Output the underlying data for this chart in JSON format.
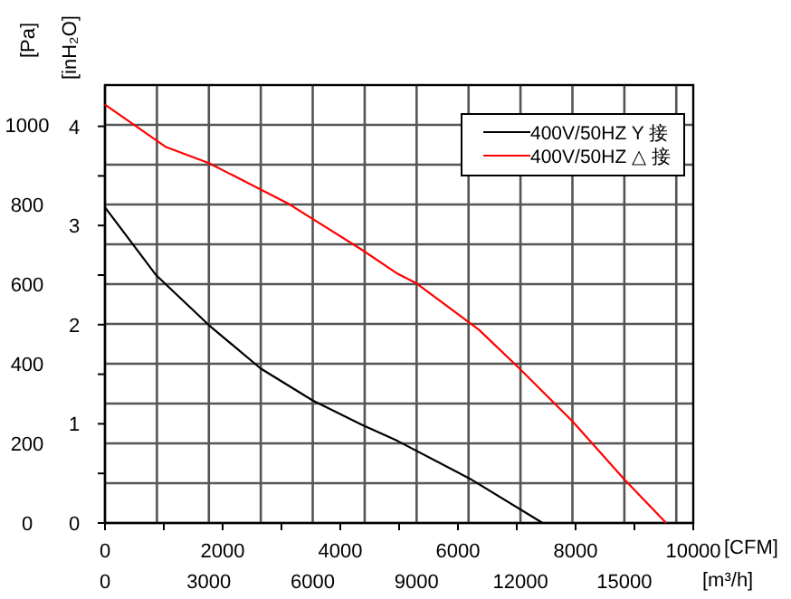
{
  "chart_data": {
    "type": "line",
    "xlabel": "[CFM]",
    "x2label": "[m³/h]",
    "ylabel": "[Pa]",
    "y2label": "[inH₂O]",
    "xlim": [
      0,
      10000
    ],
    "xticks": [
      0,
      {
        "value": 1000,
        "label": null
      },
      2000,
      {
        "value": 3000,
        "label": null
      },
      4000,
      {
        "value": 5000,
        "label": null
      },
      6000,
      {
        "value": 7000,
        "label": null
      },
      8000,
      {
        "value": 9000,
        "label": null
      },
      10000
    ],
    "x2lim": [
      0,
      16990
    ],
    "x2ticks": [
      0,
      {
        "value": 1500,
        "label": null
      },
      3000,
      {
        "value": 4500,
        "label": null
      },
      6000,
      {
        "value": 7500,
        "label": null
      },
      9000,
      {
        "value": 10500,
        "label": null
      },
      12000,
      {
        "value": 13500,
        "label": null
      },
      15000,
      {
        "value": 16500,
        "label": null
      }
    ],
    "ylim": [
      0,
      1100
    ],
    "yticks": [
      0,
      {
        "value": 100,
        "label": null
      },
      200,
      {
        "value": 300,
        "label": null
      },
      400,
      {
        "value": 500,
        "label": null
      },
      600,
      {
        "value": 700,
        "label": null
      },
      800,
      {
        "value": 900,
        "label": null
      },
      1000
    ],
    "y2lim": [
      0,
      4.416
    ],
    "y2ticks": [
      0,
      {
        "value": 0.5,
        "label": null
      },
      1,
      {
        "value": 1.5,
        "label": null
      },
      2,
      {
        "value": 2.5,
        "label": null
      },
      3,
      {
        "value": 3.5,
        "label": null
      },
      4
    ],
    "grid": true,
    "legend": "top right",
    "series": [
      {
        "name": "400V/50HZ Y  接",
        "color": "#000000",
        "x": [
          0,
          872,
          1766,
          2646,
          3529,
          4360,
          4975,
          6206,
          7440
        ],
        "values": [
          793,
          622,
          497,
          388,
          308,
          247,
          206,
          111,
          0
        ]
      },
      {
        "name": "400V/50HZ △ 接",
        "color": "#ff0000",
        "x": [
          0,
          1028,
          1766,
          3129,
          4360,
          4975,
          5283,
          6360,
          7026,
          7949,
          8820,
          9540
        ],
        "values": [
          1051,
          945,
          904,
          801,
          687,
          626,
          603,
          485,
          391,
          255,
          111,
          0
        ]
      }
    ]
  }
}
